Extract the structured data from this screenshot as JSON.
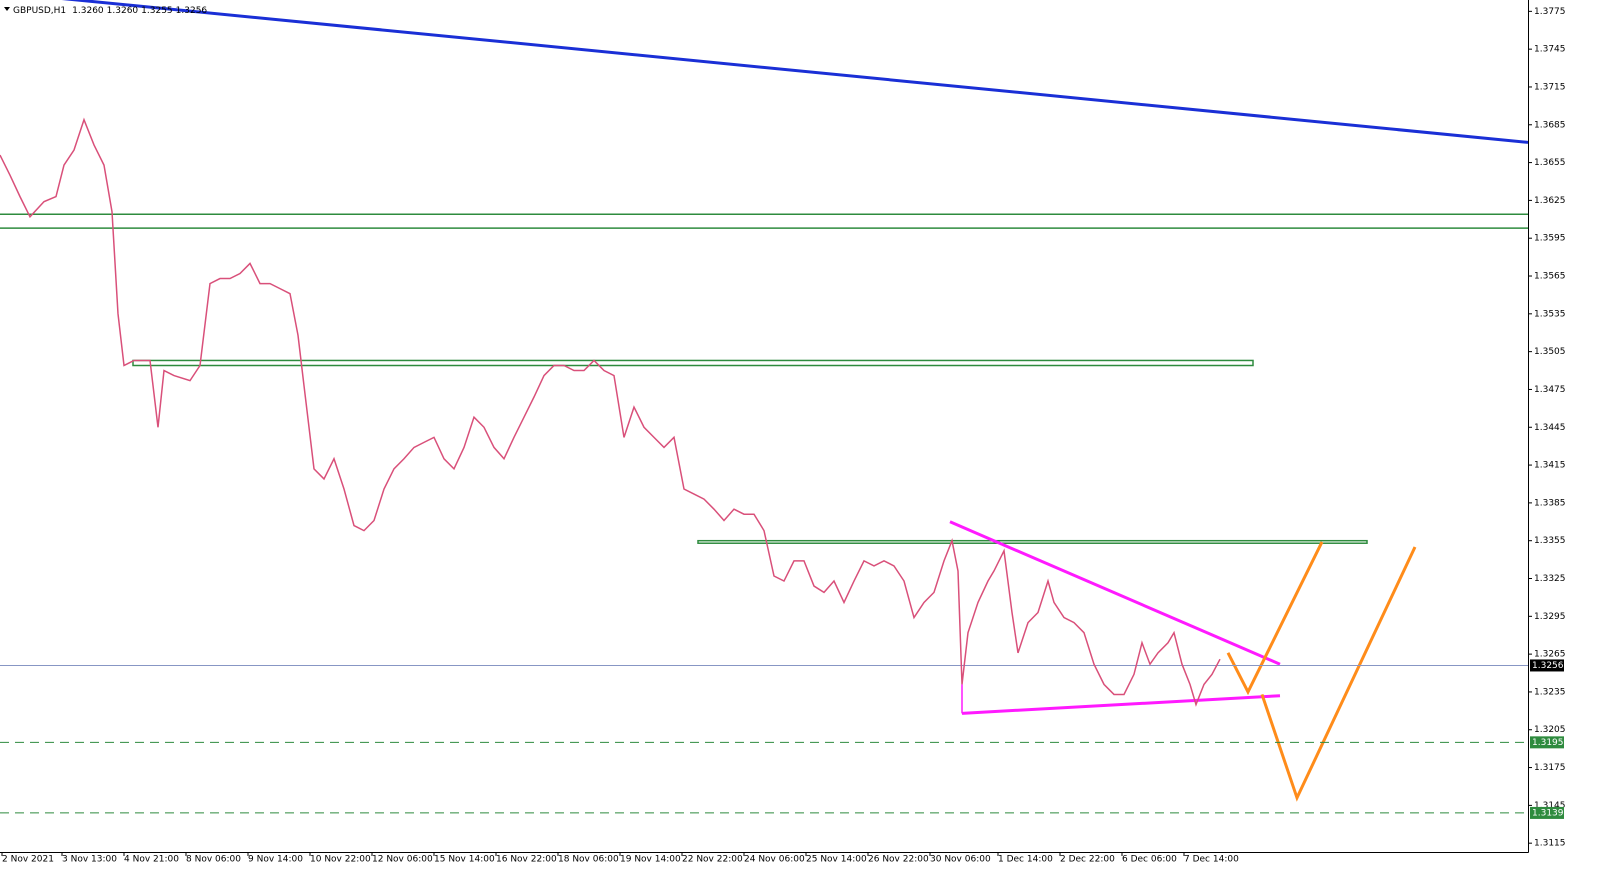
{
  "chart_data": {
    "type": "line",
    "symbol": "GBPUSD,H1",
    "ohlc": [
      {
        "value": 1.326,
        "label": "1.3260"
      },
      {
        "value": 1.326,
        "label": "1.3260"
      },
      1.3255,
      1.3256
    ],
    "xlim": [
      0,
      764
    ],
    "ylim": [
      1.3108,
      1.3784
    ],
    "yticks": [
      1.3775,
      1.3745,
      1.3715,
      1.3685,
      1.3655,
      1.3625,
      1.3595,
      1.3565,
      1.3535,
      1.3505,
      1.3475,
      1.3445,
      1.3415,
      1.3385,
      1.3355,
      1.3325,
      1.3295,
      1.3265,
      1.3235,
      1.3205,
      1.3175,
      1.3145,
      1.3115
    ],
    "xticks": [
      {
        "value": 1,
        "label": "2 Nov 2021"
      },
      {
        "value": 31,
        "label": "3 Nov 13:00"
      },
      {
        "value": 62,
        "label": "4 Nov 21:00"
      },
      {
        "value": 93,
        "label": "8 Nov 06:00"
      },
      {
        "value": 124,
        "label": "9 Nov 14:00"
      },
      {
        "value": 155,
        "label": "10 Nov 22:00"
      },
      {
        "value": 186,
        "label": "12 Nov 06:00"
      },
      {
        "value": 217,
        "label": "15 Nov 14:00"
      },
      {
        "value": 248,
        "label": "16 Nov 22:00"
      },
      {
        "value": 279,
        "label": "18 Nov 06:00"
      },
      {
        "value": 310,
        "label": "19 Nov 14:00"
      },
      {
        "value": 341,
        "label": "22 Nov 22:00"
      },
      {
        "value": 372,
        "label": "24 Nov 06:00"
      },
      {
        "value": 403,
        "label": "25 Nov 14:00"
      },
      {
        "value": 434,
        "label": "26 Nov 22:00"
      },
      {
        "value": 465,
        "label": "30 Nov 06:00"
      },
      {
        "value": 499,
        "label": "1 Dec 14:00"
      },
      {
        "value": 530,
        "label": "2 Dec 22:00"
      },
      {
        "value": 561,
        "label": "6 Dec 06:00"
      },
      {
        "value": 592,
        "label": "7 Dec 14:00"
      }
    ],
    "series": [
      {
        "name": "GBPUSD",
        "color": "#d9507a",
        "x": [
          0,
          5,
          10,
          15,
          22,
          28,
          32,
          37,
          42,
          47,
          52,
          56,
          59,
          62,
          67,
          75,
          79,
          82,
          87,
          95,
          100,
          105,
          110,
          115,
          120,
          125,
          130,
          135,
          140,
          145,
          149,
          152,
          157,
          162,
          167,
          172,
          177,
          182,
          187,
          192,
          197,
          202,
          207,
          212,
          217,
          222,
          227,
          232,
          237,
          242,
          247,
          252,
          257,
          262,
          267,
          272,
          277,
          282,
          287,
          292,
          297,
          302,
          307,
          312,
          317,
          322,
          327,
          332,
          337,
          342,
          347,
          352,
          357,
          362,
          367,
          372,
          377,
          382,
          387,
          392,
          397,
          402,
          407,
          412,
          417,
          422,
          427,
          432,
          437,
          442,
          447,
          452,
          457,
          462,
          467,
          472,
          476,
          479,
          481,
          484,
          489,
          494,
          497,
          502,
          506,
          509,
          514,
          519,
          524,
          527,
          532,
          537,
          542,
          547,
          552,
          557,
          562,
          567,
          571,
          575,
          579,
          584,
          587,
          591,
          595,
          598,
          602,
          606,
          610
        ],
        "values": [
          1.3661,
          1.3645,
          1.3628,
          1.3612,
          1.3624,
          1.3628,
          1.3653,
          1.3665,
          1.3689,
          1.3669,
          1.3653,
          1.3616,
          1.3535,
          1.3494,
          1.3498,
          1.3498,
          1.3445,
          1.349,
          1.3486,
          1.3482,
          1.3494,
          1.3559,
          1.3563,
          1.3563,
          1.3567,
          1.3575,
          1.3559,
          1.3559,
          1.3555,
          1.3551,
          1.3518,
          1.3478,
          1.3412,
          1.3404,
          1.342,
          1.3396,
          1.3367,
          1.3363,
          1.3371,
          1.3396,
          1.3412,
          1.342,
          1.3429,
          1.3433,
          1.3437,
          1.342,
          1.3412,
          1.3429,
          1.3453,
          1.3445,
          1.3429,
          1.342,
          1.3437,
          1.3453,
          1.3469,
          1.3486,
          1.3494,
          1.3494,
          1.349,
          1.349,
          1.3498,
          1.349,
          1.3486,
          1.3437,
          1.3461,
          1.3445,
          1.3437,
          1.3429,
          1.3437,
          1.3396,
          1.3392,
          1.3388,
          1.338,
          1.3371,
          1.338,
          1.3376,
          1.3376,
          1.3363,
          1.3327,
          1.3323,
          1.3339,
          1.3339,
          1.3319,
          1.3314,
          1.3323,
          1.3306,
          1.3323,
          1.3339,
          1.3335,
          1.3339,
          1.3335,
          1.3323,
          1.3294,
          1.3306,
          1.3314,
          1.3339,
          1.3355,
          1.3331,
          1.3241,
          1.3282,
          1.3306,
          1.3323,
          1.3331,
          1.3347,
          1.3298,
          1.3266,
          1.329,
          1.3298,
          1.3323,
          1.3306,
          1.3294,
          1.329,
          1.3282,
          1.3257,
          1.3241,
          1.3233,
          1.3233,
          1.3249,
          1.3274,
          1.3257,
          1.3266,
          1.3274,
          1.3282,
          1.3257,
          1.3241,
          1.3225,
          1.3241,
          1.3249,
          1.3261
        ]
      }
    ],
    "levels": [
      {
        "value": 1.3256,
        "color": "#8796c4",
        "dash": false,
        "label_bg": "#000000"
      },
      {
        "value": 1.3195,
        "color": "#2e8b3e",
        "dash": true,
        "label_bg": "#2e8b3e"
      },
      {
        "value": 1.3139,
        "color": "#2e8b3e",
        "dash": true,
        "label_bg": "#2e8b3e"
      }
    ],
    "drawings": [
      {
        "kind": "line",
        "color": "#1a2fd6",
        "width": 3,
        "points": [
          [
            0,
            1.379
          ],
          [
            764,
            1.3671
          ]
        ]
      },
      {
        "kind": "line",
        "color": "#2e8b3e",
        "width": 1.5,
        "points": [
          [
            0,
            1.3614
          ],
          [
            764,
            1.3614
          ]
        ]
      },
      {
        "kind": "line",
        "color": "#2e8b3e",
        "width": 1.5,
        "points": [
          [
            0,
            1.3603
          ],
          [
            764,
            1.3603
          ]
        ]
      },
      {
        "kind": "zone",
        "color": "#2e8b3e",
        "width": 1.5,
        "points": [
          [
            66.5,
            1.3498
          ],
          [
            626.5,
            1.3494
          ]
        ]
      },
      {
        "kind": "zone",
        "color": "#2e8b3e",
        "width": 1.5,
        "points": [
          [
            349,
            1.3355
          ],
          [
            683.5,
            1.3353
          ]
        ]
      },
      {
        "kind": "line",
        "color": "#ff1aff",
        "width": 3,
        "points": [
          [
            475,
            1.337
          ],
          [
            640,
            1.3257
          ]
        ]
      },
      {
        "kind": "line",
        "color": "#ff1aff",
        "width": 3,
        "points": [
          [
            481,
            1.3218
          ],
          [
            640,
            1.3232
          ]
        ]
      },
      {
        "kind": "line",
        "color": "#ff1aff",
        "width": 1.5,
        "points": [
          [
            481,
            1.3241
          ],
          [
            481,
            1.3218
          ]
        ]
      },
      {
        "kind": "line",
        "color": "#ff8c1a",
        "width": 3,
        "points": [
          [
            614,
            1.3266
          ],
          [
            624,
            1.3235
          ],
          [
            661,
            1.3354
          ]
        ]
      },
      {
        "kind": "line",
        "color": "#ff8c1a",
        "width": 3,
        "points": [
          [
            631,
            1.3233
          ],
          [
            648.5,
            1.3151
          ],
          [
            707.5,
            1.335
          ]
        ]
      }
    ]
  }
}
